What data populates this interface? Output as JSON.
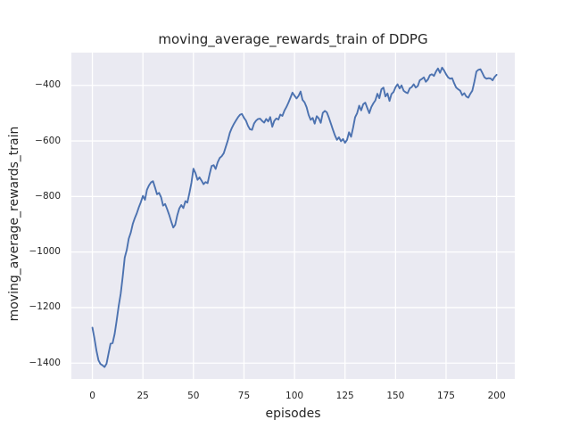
{
  "figure": {
    "background_color": "#ffffff",
    "axes_background_color": "#eaeaf2",
    "grid_color": "#ffffff",
    "text_color": "#262626"
  },
  "chart_data": {
    "type": "line",
    "title": "moving_average_rewards_train of DDPG",
    "xlabel": "episodes",
    "ylabel": "moving_average_rewards_train",
    "xlim": [
      -10.4,
      209.0
    ],
    "ylim": [
      -1457,
      -282
    ],
    "grid": true,
    "legend": "none",
    "xticks": [
      {
        "v": 0,
        "label": "0"
      },
      {
        "v": 25,
        "label": "25"
      },
      {
        "v": 50,
        "label": "50"
      },
      {
        "v": 75,
        "label": "75"
      },
      {
        "v": 100,
        "label": "100"
      },
      {
        "v": 125,
        "label": "125"
      },
      {
        "v": 150,
        "label": "150"
      },
      {
        "v": 175,
        "label": "175"
      },
      {
        "v": 200,
        "label": "200"
      }
    ],
    "yticks": [
      {
        "v": -400,
        "label": "−400"
      },
      {
        "v": -600,
        "label": "−600"
      },
      {
        "v": -800,
        "label": "−800"
      },
      {
        "v": -1000,
        "label": "−1000"
      },
      {
        "v": -1200,
        "label": "−1200"
      },
      {
        "v": -1400,
        "label": "−1400"
      }
    ],
    "series": [
      {
        "name": "moving_average_rewards_train",
        "color": "#4c72b0",
        "x_start": 0,
        "x_step": 1,
        "values": [
          -1272,
          -1310,
          -1355,
          -1390,
          -1403,
          -1408,
          -1414,
          -1402,
          -1365,
          -1330,
          -1328,
          -1295,
          -1248,
          -1195,
          -1150,
          -1090,
          -1020,
          -992,
          -952,
          -930,
          -898,
          -878,
          -860,
          -838,
          -820,
          -798,
          -812,
          -776,
          -760,
          -749,
          -745,
          -768,
          -792,
          -787,
          -803,
          -833,
          -827,
          -846,
          -866,
          -890,
          -912,
          -902,
          -868,
          -843,
          -831,
          -842,
          -817,
          -822,
          -788,
          -750,
          -700,
          -716,
          -740,
          -731,
          -743,
          -756,
          -748,
          -752,
          -720,
          -690,
          -687,
          -701,
          -677,
          -661,
          -655,
          -644,
          -621,
          -599,
          -571,
          -553,
          -539,
          -527,
          -515,
          -506,
          -503,
          -517,
          -527,
          -546,
          -558,
          -560,
          -537,
          -527,
          -521,
          -520,
          -528,
          -534,
          -521,
          -530,
          -514,
          -549,
          -528,
          -519,
          -523,
          -505,
          -510,
          -491,
          -478,
          -462,
          -444,
          -426,
          -437,
          -447,
          -438,
          -422,
          -452,
          -461,
          -479,
          -506,
          -524,
          -517,
          -538,
          -511,
          -519,
          -535,
          -499,
          -492,
          -497,
          -516,
          -538,
          -559,
          -580,
          -596,
          -587,
          -601,
          -593,
          -607,
          -596,
          -569,
          -585,
          -552,
          -515,
          -500,
          -473,
          -490,
          -468,
          -462,
          -481,
          -500,
          -478,
          -465,
          -454,
          -430,
          -446,
          -414,
          -408,
          -440,
          -429,
          -456,
          -431,
          -424,
          -407,
          -396,
          -411,
          -400,
          -419,
          -425,
          -428,
          -411,
          -406,
          -396,
          -408,
          -402,
          -382,
          -377,
          -371,
          -387,
          -379,
          -363,
          -360,
          -366,
          -350,
          -339,
          -355,
          -336,
          -346,
          -360,
          -371,
          -376,
          -374,
          -392,
          -408,
          -414,
          -419,
          -435,
          -428,
          -440,
          -444,
          -430,
          -419,
          -387,
          -350,
          -344,
          -342,
          -356,
          -371,
          -376,
          -374,
          -375,
          -382,
          -370,
          -362
        ]
      }
    ]
  }
}
